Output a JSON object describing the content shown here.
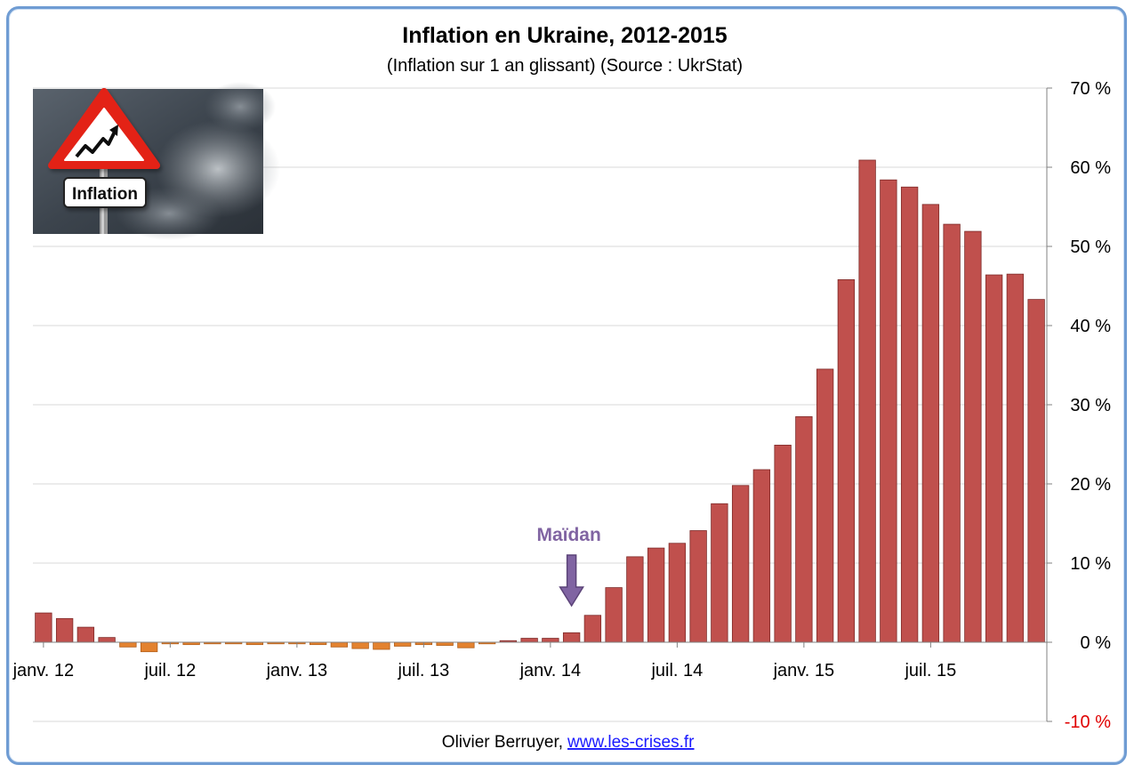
{
  "chart_data": {
    "type": "bar",
    "title": "Inflation en Ukraine, 2012-2015",
    "subtitle": "(Inflation sur 1 an glissant) (Source : UkrStat)",
    "ylim": [
      -10,
      70
    ],
    "yticks": [
      70,
      60,
      50,
      40,
      30,
      20,
      10,
      0,
      -10
    ],
    "ytick_labels": [
      "70 %",
      "60 %",
      "50 %",
      "40 %",
      "30 %",
      "20 %",
      "10 %",
      "0 %",
      "-10 %"
    ],
    "y_axis_side": "right",
    "grid": true,
    "categories": [
      "2012-01",
      "2012-02",
      "2012-03",
      "2012-04",
      "2012-05",
      "2012-06",
      "2012-07",
      "2012-08",
      "2012-09",
      "2012-10",
      "2012-11",
      "2012-12",
      "2013-01",
      "2013-02",
      "2013-03",
      "2013-04",
      "2013-05",
      "2013-06",
      "2013-07",
      "2013-08",
      "2013-09",
      "2013-10",
      "2013-11",
      "2013-12",
      "2014-01",
      "2014-02",
      "2014-03",
      "2014-04",
      "2014-05",
      "2014-06",
      "2014-07",
      "2014-08",
      "2014-09",
      "2014-10",
      "2014-11",
      "2014-12",
      "2015-01",
      "2015-02",
      "2015-03",
      "2015-04",
      "2015-05",
      "2015-06",
      "2015-07",
      "2015-08",
      "2015-09",
      "2015-10",
      "2015-11",
      "2015-12"
    ],
    "values": [
      3.7,
      3.0,
      1.9,
      0.6,
      -0.6,
      -1.2,
      -0.2,
      -0.3,
      -0.2,
      -0.2,
      -0.3,
      -0.2,
      -0.2,
      -0.3,
      -0.6,
      -0.8,
      -0.9,
      -0.5,
      -0.3,
      -0.4,
      -0.7,
      -0.2,
      0.2,
      0.5,
      0.5,
      1.2,
      3.4,
      6.9,
      10.8,
      11.9,
      12.5,
      14.1,
      17.5,
      19.8,
      21.8,
      24.9,
      28.5,
      34.5,
      45.8,
      60.9,
      58.4,
      57.5,
      55.3,
      52.8,
      51.9,
      46.4,
      46.5,
      43.3
    ],
    "colors": {
      "positive": "#c0504d",
      "negative": "#e3822f",
      "annotation": "#8064a2",
      "axis_negative_label": "#e00000"
    },
    "x_labels": [
      {
        "text": "janv. 12",
        "index": 0
      },
      {
        "text": "juil. 12",
        "index": 6
      },
      {
        "text": "janv. 13",
        "index": 12
      },
      {
        "text": "juil. 13",
        "index": 18
      },
      {
        "text": "janv. 14",
        "index": 24
      },
      {
        "text": "juil. 14",
        "index": 30
      },
      {
        "text": "janv. 15",
        "index": 36
      },
      {
        "text": "juil. 15",
        "index": 42
      }
    ],
    "annotation": {
      "text": "Maïdan",
      "index": 25,
      "icon": "arrow-down-icon"
    },
    "inset_image": {
      "label": "Inflation",
      "icon": "warning-sign-icon"
    }
  },
  "credit": {
    "author": "Olivier Berruyer,",
    "link": "www.les-crises.fr"
  }
}
